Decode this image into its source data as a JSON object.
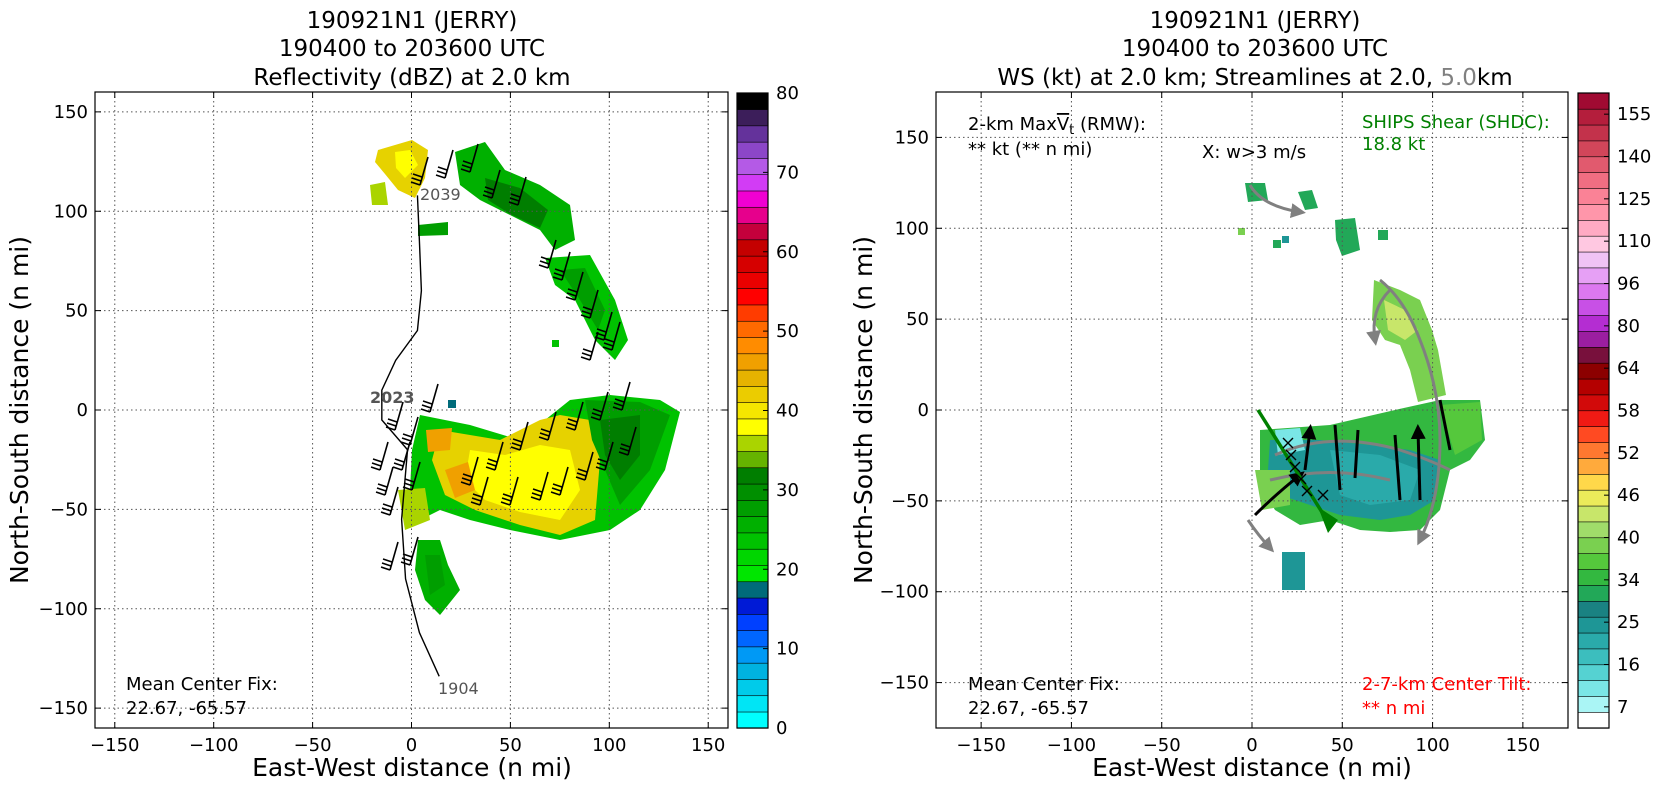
{
  "left_panel": {
    "title_lines": [
      "190921N1 (JERRY)",
      "190400 to 203600 UTC",
      "Reflectivity (dBZ) at 2.0 km"
    ],
    "xlabel": "East-West distance (n mi)",
    "ylabel": "North-South distance (n mi)",
    "annotations": {
      "mean_center_label": "Mean Center Fix:",
      "mean_center_value": "22.67, -65.57",
      "track_start": "1904",
      "track_mid": "2023",
      "track_end": "2039"
    },
    "colorbar": {
      "ticks": [
        "0",
        "10",
        "20",
        "30",
        "40",
        "50",
        "60",
        "70",
        "80"
      ]
    }
  },
  "right_panel": {
    "title_lines": [
      "190921N1 (JERRY)",
      "190400 to 203600 UTC"
    ],
    "title_line3_parts": [
      "WS (kt) at 2.0 km; Streamlines at 2.0, ",
      "5.0",
      "km"
    ],
    "xlabel": "East-West distance (n mi)",
    "ylabel": "North-South distance (n mi)",
    "annotations": {
      "maxvt_prefix": "2-km Max",
      "maxvt_symbol": "V",
      "maxvt_sub": "t",
      "maxvt_suffix": " (RMW):",
      "maxvt_value": "** kt (** n mi)",
      "updraft_marker": "X: w>3 m/s",
      "shear_label": "SHIPS Shear (SHDC):",
      "shear_value": "18.8 kt",
      "mean_center_label": "Mean Center Fix:",
      "mean_center_value": "22.67, -65.57",
      "tilt_label": "2-7-km Center Tilt:",
      "tilt_value": "** n mi"
    },
    "colorbar": {
      "ticks": [
        "7",
        "16",
        "25",
        "34",
        "40",
        "46",
        "52",
        "58",
        "64",
        "80",
        "96",
        "110",
        "125",
        "140",
        "155"
      ]
    }
  },
  "chart_data": [
    {
      "type": "heatmap",
      "title": "190921N1 (JERRY) 190400 to 203600 UTC Reflectivity (dBZ) at 2.0 km",
      "xlabel": "East-West distance (n mi)",
      "ylabel": "North-South distance (n mi)",
      "xlim": [
        -160,
        160
      ],
      "ylim": [
        -160,
        160
      ],
      "xticks": [
        -150,
        -100,
        -50,
        0,
        50,
        100,
        150
      ],
      "yticks": [
        -150,
        -100,
        -50,
        0,
        50,
        100,
        150
      ],
      "grid": true,
      "colorbar_range": [
        0,
        80
      ],
      "colorbar_levels": 32,
      "colorbar_colors": [
        "#00ffff",
        "#00e5f5",
        "#00cbea",
        "#00b2e0",
        "#0099f5",
        "#0066ff",
        "#0040ff",
        "#001ad6",
        "#006b7a",
        "#00e600",
        "#00d600",
        "#00c200",
        "#00b000",
        "#009e00",
        "#008f00",
        "#007e00",
        "#66b300",
        "#aad400",
        "#ffff00",
        "#f5e600",
        "#ebcc00",
        "#e6b300",
        "#f0a000",
        "#ff8c00",
        "#ff6a00",
        "#ff3c00",
        "#ff0000",
        "#ea0000",
        "#d60000",
        "#c40000",
        "#c4003c",
        "#e6008c",
        "#f000d2",
        "#d23cf5",
        "#b45ae6",
        "#8c46c8",
        "#64329b",
        "#3c1e5a",
        "#000000"
      ],
      "storm_track": {
        "points": [
          [
            14,
            -134
          ],
          [
            4,
            -112
          ],
          [
            -3,
            -85
          ],
          [
            -5,
            -55
          ],
          [
            -2,
            -20
          ],
          [
            -15,
            -5
          ],
          [
            -15,
            10
          ],
          [
            -8,
            25
          ],
          [
            3,
            40
          ],
          [
            5,
            60
          ],
          [
            4,
            85
          ],
          [
            3,
            108
          ]
        ],
        "time_labels": [
          "1904",
          "2023",
          "2039"
        ]
      },
      "echo_regions_dbz": [
        {
          "center": [
            10,
            120
          ],
          "value": 38
        },
        {
          "center": [
            35,
            110
          ],
          "value": 28
        },
        {
          "center": [
            55,
            95
          ],
          "value": 27
        },
        {
          "center": [
            80,
            55
          ],
          "value": 26
        },
        {
          "center": [
            100,
            20
          ],
          "value": 24
        },
        {
          "center": [
            20,
            -30
          ],
          "value": 36
        },
        {
          "center": [
            70,
            -40
          ],
          "value": 38
        },
        {
          "center": [
            10,
            -85
          ],
          "value": 24
        }
      ]
    },
    {
      "type": "heatmap",
      "title": "190921N1 (JERRY) 190400 to 203600 UTC WS (kt) at 2.0 km; Streamlines at 2.0, 5.0km",
      "xlabel": "East-West distance (n mi)",
      "ylabel": "North-South distance (n mi)",
      "xlim": [
        -175,
        175
      ],
      "ylim": [
        -175,
        175
      ],
      "xticks": [
        -150,
        -100,
        -50,
        0,
        50,
        100,
        150
      ],
      "yticks": [
        -150,
        -100,
        -50,
        0,
        50,
        100,
        150
      ],
      "grid": true,
      "colorbar_range": [
        7,
        160
      ],
      "colorbar_colors": [
        "#ffffff",
        "#aaf5f5",
        "#7ae6e6",
        "#55d2d2",
        "#3cbebe",
        "#2aaaaa",
        "#1e9696",
        "#1a8282",
        "#22a858",
        "#33b840",
        "#55c83c",
        "#7ad050",
        "#a0dc6a",
        "#c8e66a",
        "#ebeb5a",
        "#ffd84a",
        "#ffaa3c",
        "#ff7830",
        "#ff4a22",
        "#f01a14",
        "#d20a0a",
        "#b40000",
        "#8c0000",
        "#78103c",
        "#9b1ea0",
        "#b42dd2",
        "#c850e6",
        "#dc78f0",
        "#e6a0f5",
        "#f0c3f5",
        "#ffc8e1",
        "#ffaac3",
        "#ff96aa",
        "#fa8296",
        "#f06e82",
        "#e15a6e",
        "#d2465a",
        "#c3324b",
        "#b41e3c",
        "#a00a32"
      ],
      "ships_shear_kt": 18.8,
      "echo_regions_kt": [
        {
          "center": [
            15,
            115
          ],
          "value": 33
        },
        {
          "center": [
            55,
            95
          ],
          "value": 33
        },
        {
          "center": [
            85,
            50
          ],
          "value": 40
        },
        {
          "center": [
            90,
            -25
          ],
          "value": 30
        },
        {
          "center": [
            40,
            -40
          ],
          "value": 22
        },
        {
          "center": [
            15,
            -95
          ],
          "value": 22
        }
      ]
    }
  ]
}
